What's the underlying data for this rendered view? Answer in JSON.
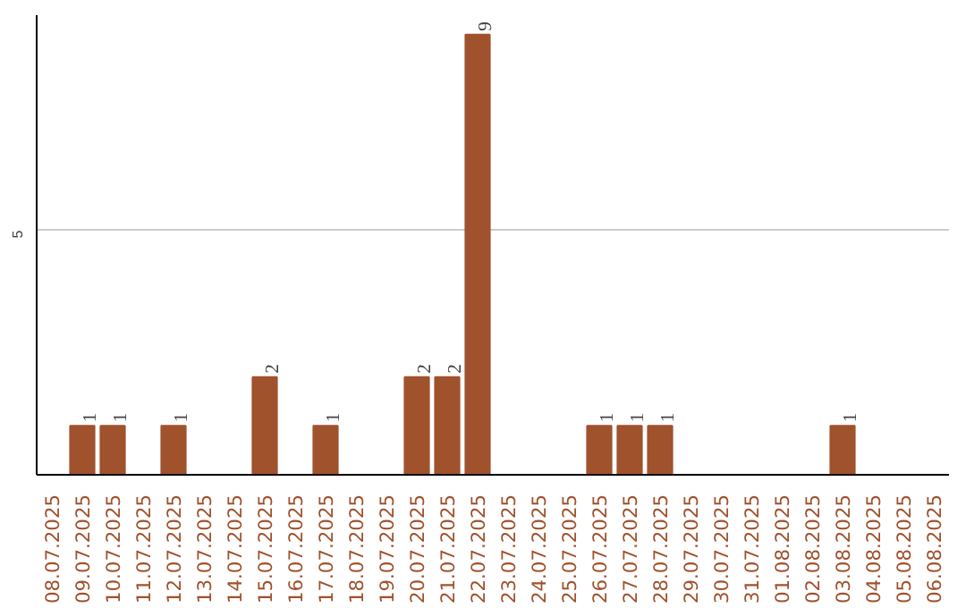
{
  "chart_data": {
    "type": "bar",
    "categories": [
      "08.07.2025",
      "09.07.2025",
      "10.07.2025",
      "11.07.2025",
      "12.07.2025",
      "13.07.2025",
      "14.07.2025",
      "15.07.2025",
      "16.07.2025",
      "17.07.2025",
      "18.07.2025",
      "19.07.2025",
      "20.07.2025",
      "21.07.2025",
      "22.07.2025",
      "23.07.2025",
      "24.07.2025",
      "25.07.2025",
      "26.07.2025",
      "27.07.2025",
      "28.07.2025",
      "29.07.2025",
      "30.07.2025",
      "31.07.2025",
      "01.08.2025",
      "02.08.2025",
      "03.08.2025",
      "04.08.2025",
      "05.08.2025",
      "06.08.2025"
    ],
    "values": [
      0,
      1,
      1,
      0,
      1,
      0,
      0,
      2,
      0,
      1,
      0,
      0,
      2,
      2,
      9,
      0,
      0,
      0,
      1,
      1,
      1,
      0,
      0,
      0,
      0,
      0,
      1,
      0,
      0,
      0
    ],
    "value_labels": [
      null,
      "1",
      "1",
      null,
      "1",
      null,
      null,
      "2",
      null,
      "1",
      null,
      null,
      "2",
      "2",
      "9",
      null,
      null,
      null,
      "1",
      "1",
      "1",
      null,
      null,
      null,
      null,
      null,
      "1",
      null,
      null,
      null
    ],
    "color": "#a0522d",
    "ylim": [
      0,
      9.4
    ],
    "yticks": [
      5
    ],
    "grid": "y"
  }
}
